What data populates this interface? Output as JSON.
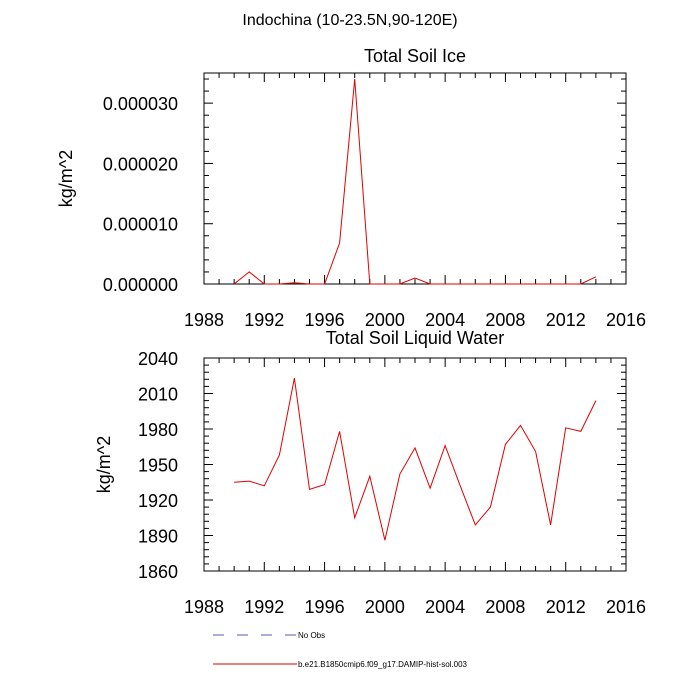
{
  "figure_title": "Indochina (10-23.5N,90-120E)",
  "legend": {
    "items": [
      {
        "label": "No Obs",
        "color": "#5a5ab4",
        "style": "dashed"
      },
      {
        "label": "b.e21.B1850cmip6.f09_g17.DAMIP-hist-sol.003",
        "color": "#e00000",
        "style": "solid"
      }
    ]
  },
  "chart_data": [
    {
      "type": "line",
      "title": "Total Soil Ice",
      "xlabel": "",
      "ylabel": "kg/m^2",
      "xlim": [
        1988,
        2016
      ],
      "ylim": [
        0,
        3.5e-05
      ],
      "x_ticks": [
        1988,
        1992,
        1996,
        2000,
        2004,
        2008,
        2012,
        2016
      ],
      "x_tick_labels": [
        "1988",
        "1992",
        "1996",
        "2000",
        "2004",
        "2008",
        "2012",
        "2016"
      ],
      "y_ticks": [
        0,
        1e-05,
        2e-05,
        3e-05
      ],
      "y_tick_labels": [
        "0.000000",
        "0.000010",
        "0.000020",
        "0.000030"
      ],
      "grid": false,
      "series": [
        {
          "color": "#e00000",
          "x": [
            1990,
            1991,
            1992,
            1993,
            1994,
            1995,
            1996,
            1997,
            1998,
            1999,
            2000,
            2001,
            2002,
            2003,
            2004,
            2005,
            2006,
            2007,
            2008,
            2009,
            2010,
            2011,
            2012,
            2013,
            2014
          ],
          "y": [
            0,
            2e-06,
            0,
            0,
            2e-07,
            0,
            0,
            6.8e-06,
            3.4e-05,
            0,
            0,
            0,
            1e-06,
            0,
            0,
            0,
            0,
            0,
            0,
            0,
            0,
            0,
            0,
            0,
            1.2e-06
          ]
        }
      ]
    },
    {
      "type": "line",
      "title": "Total Soil Liquid Water",
      "xlabel": "",
      "ylabel": "kg/m^2",
      "xlim": [
        1988,
        2016
      ],
      "ylim": [
        1860,
        2040
      ],
      "x_ticks": [
        1988,
        1992,
        1996,
        2000,
        2004,
        2008,
        2012,
        2016
      ],
      "x_tick_labels": [
        "1988",
        "1992",
        "1996",
        "2000",
        "2004",
        "2008",
        "2012",
        "2016"
      ],
      "y_ticks": [
        1860,
        1890,
        1920,
        1950,
        1980,
        2010,
        2040
      ],
      "y_tick_labels": [
        "1860",
        "1890",
        "1920",
        "1950",
        "1980",
        "2010",
        "2040"
      ],
      "grid": false,
      "series": [
        {
          "color": "#e00000",
          "x": [
            1990,
            1991,
            1992,
            1993,
            1994,
            1995,
            1996,
            1997,
            1998,
            1999,
            2000,
            2001,
            2002,
            2003,
            2004,
            2005,
            2006,
            2007,
            2008,
            2009,
            2010,
            2011,
            2012,
            2013,
            2014
          ],
          "y": [
            1935,
            1936,
            1932,
            1958,
            2023,
            1929,
            1933,
            1978,
            1905,
            1940,
            1886,
            1942,
            1964,
            1930,
            1966,
            1932,
            1899,
            1914,
            1967,
            1983,
            1961,
            1899,
            1981,
            1978,
            2004
          ]
        }
      ]
    }
  ]
}
